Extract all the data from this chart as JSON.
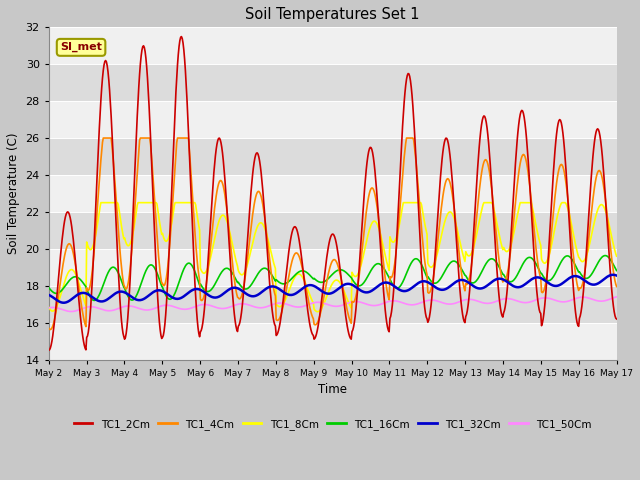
{
  "title": "Soil Temperatures Set 1",
  "xlabel": "Time",
  "ylabel": "Soil Temperature (C)",
  "ylim": [
    14,
    32
  ],
  "yticks": [
    14,
    16,
    18,
    20,
    22,
    24,
    26,
    28,
    30,
    32
  ],
  "series_colors": {
    "TC1_2Cm": "#cc0000",
    "TC1_4Cm": "#ff8800",
    "TC1_8Cm": "#ffff00",
    "TC1_16Cm": "#00cc00",
    "TC1_32Cm": "#0000cc",
    "TC1_50Cm": "#ff88ff"
  },
  "annotation_label": "SI_met",
  "linewidth": 1.2,
  "n_days": 15,
  "figsize": [
    6.4,
    4.8
  ],
  "dpi": 100
}
